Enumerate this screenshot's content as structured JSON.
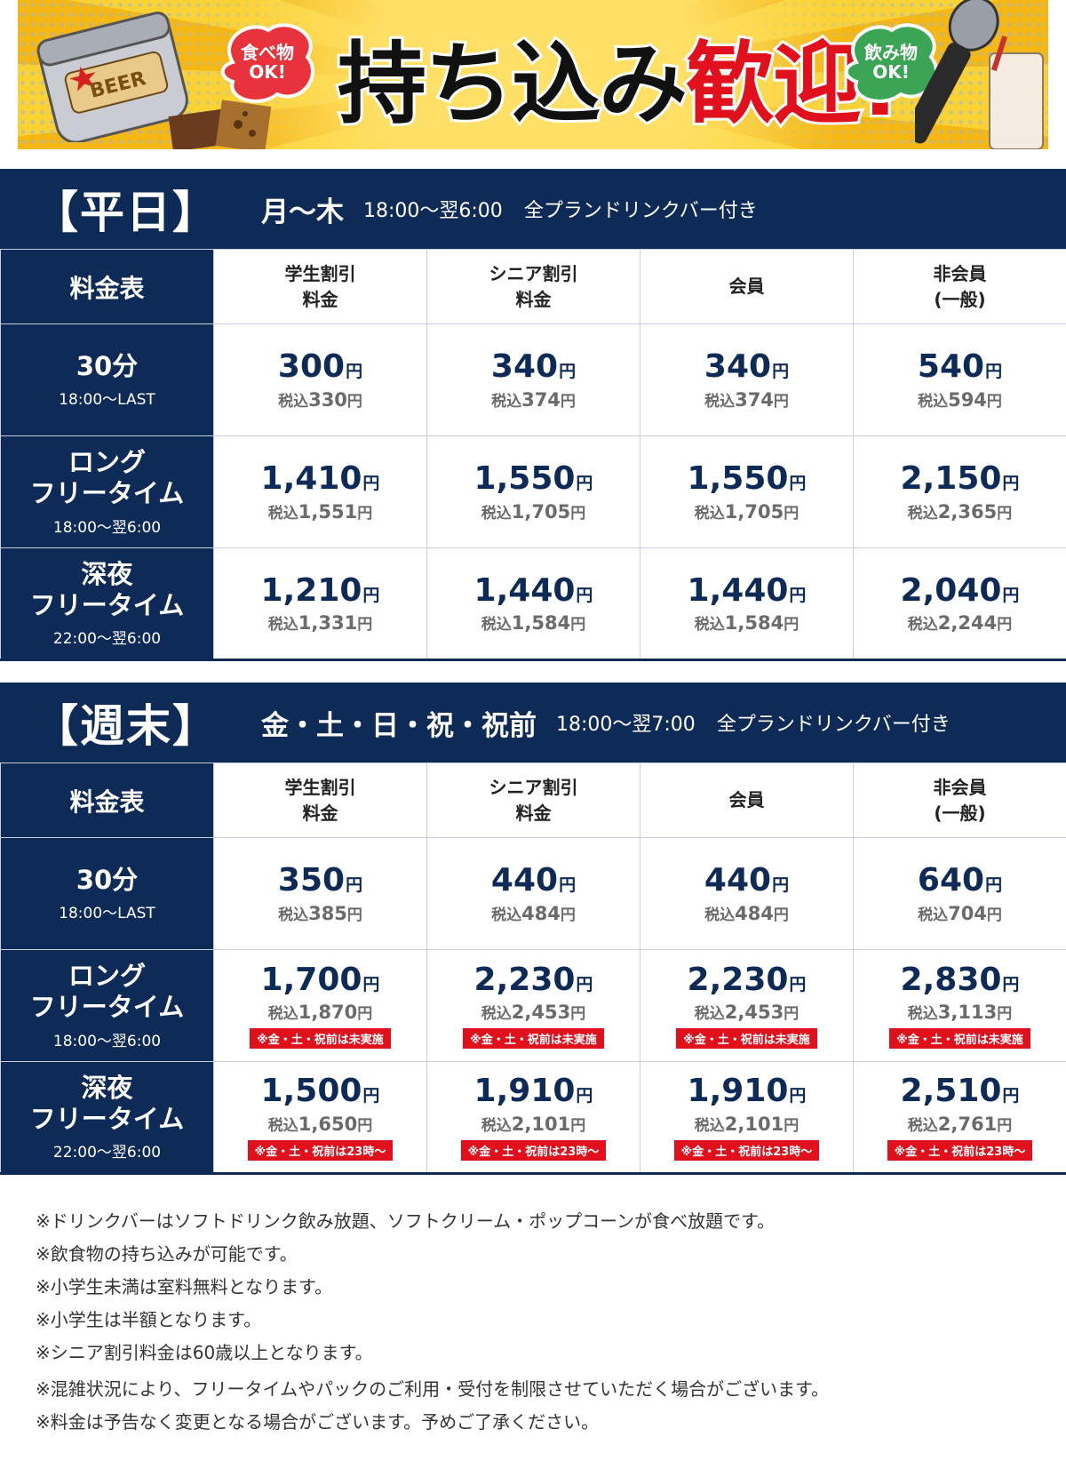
{
  "banner": {
    "food_bubble": [
      "食べ物",
      "OK!"
    ],
    "drink_bubble": [
      "飲み物",
      "OK!"
    ],
    "title_main": "持ち込み",
    "title_accent": "歓迎!",
    "can_label": "BEER"
  },
  "columns": [
    "学生割引\n料金",
    "シニア割引\n料金",
    "会員",
    "非会員\n(一般)"
  ],
  "table_label": "料金表",
  "weekday": {
    "badge": "【平日】",
    "days": "月～木",
    "hours": "18:00～翌6:00",
    "note": "全プランドリンクバー付き",
    "rows": [
      {
        "name": "30分",
        "time": "18:00～LAST",
        "prices": [
          {
            "main": "300",
            "tax": "330"
          },
          {
            "main": "340",
            "tax": "374"
          },
          {
            "main": "340",
            "tax": "374"
          },
          {
            "main": "540",
            "tax": "594"
          }
        ]
      },
      {
        "name": "ロング\nフリータイム",
        "time": "18:00～翌6:00",
        "prices": [
          {
            "main": "1,410",
            "tax": "1,551"
          },
          {
            "main": "1,550",
            "tax": "1,705"
          },
          {
            "main": "1,550",
            "tax": "1,705"
          },
          {
            "main": "2,150",
            "tax": "2,365"
          }
        ]
      },
      {
        "name": "深夜\nフリータイム",
        "time": "22:00～翌6:00",
        "prices": [
          {
            "main": "1,210",
            "tax": "1,331"
          },
          {
            "main": "1,440",
            "tax": "1,584"
          },
          {
            "main": "1,440",
            "tax": "1,584"
          },
          {
            "main": "2,040",
            "tax": "2,244"
          }
        ]
      }
    ]
  },
  "weekend": {
    "badge": "【週末】",
    "days": "金・土・日・祝・祝前",
    "hours": "18:00～翌7:00",
    "note": "全プランドリンクバー付き",
    "rows": [
      {
        "name": "30分",
        "time": "18:00～LAST",
        "prices": [
          {
            "main": "350",
            "tax": "385"
          },
          {
            "main": "440",
            "tax": "484"
          },
          {
            "main": "440",
            "tax": "484"
          },
          {
            "main": "640",
            "tax": "704"
          }
        ]
      },
      {
        "name": "ロング\nフリータイム",
        "time": "18:00～翌6:00",
        "prices": [
          {
            "main": "1,700",
            "tax": "1,870",
            "tag": "※金・土・祝前は未実施"
          },
          {
            "main": "2,230",
            "tax": "2,453",
            "tag": "※金・土・祝前は未実施"
          },
          {
            "main": "2,230",
            "tax": "2,453",
            "tag": "※金・土・祝前は未実施"
          },
          {
            "main": "2,830",
            "tax": "3,113",
            "tag": "※金・土・祝前は未実施"
          }
        ]
      },
      {
        "name": "深夜\nフリータイム",
        "time": "22:00～翌6:00",
        "prices": [
          {
            "main": "1,500",
            "tax": "1,650",
            "tag": "※金・土・祝前は23時～"
          },
          {
            "main": "1,910",
            "tax": "2,101",
            "tag": "※金・土・祝前は23時～"
          },
          {
            "main": "1,910",
            "tax": "2,101",
            "tag": "※金・土・祝前は23時～"
          },
          {
            "main": "2,510",
            "tax": "2,761",
            "tag": "※金・土・祝前は23時～"
          }
        ]
      }
    ]
  },
  "price_labels": {
    "yen": "円",
    "tax_prefix": "税込"
  },
  "notes": [
    "※ドリンクバーはソフトドリンク飲み放題、ソフトクリーム・ポップコーンが食べ放題です。",
    "※飲食物の持ち込みが可能です。",
    "※小学生未満は室料無料となります。",
    "※小学生は半額となります。",
    "※シニア割引料金は60歳以上となります。",
    "※混雑状況により、フリータイムやパックのご利用・受付を制限させていただく場合がございます。",
    "※料金は予告なく変更となる場合がございます。予めご了承ください。"
  ],
  "colors": {
    "navy": "#0e2b58",
    "red": "#e0111d",
    "yellow": "#f7c51e"
  }
}
